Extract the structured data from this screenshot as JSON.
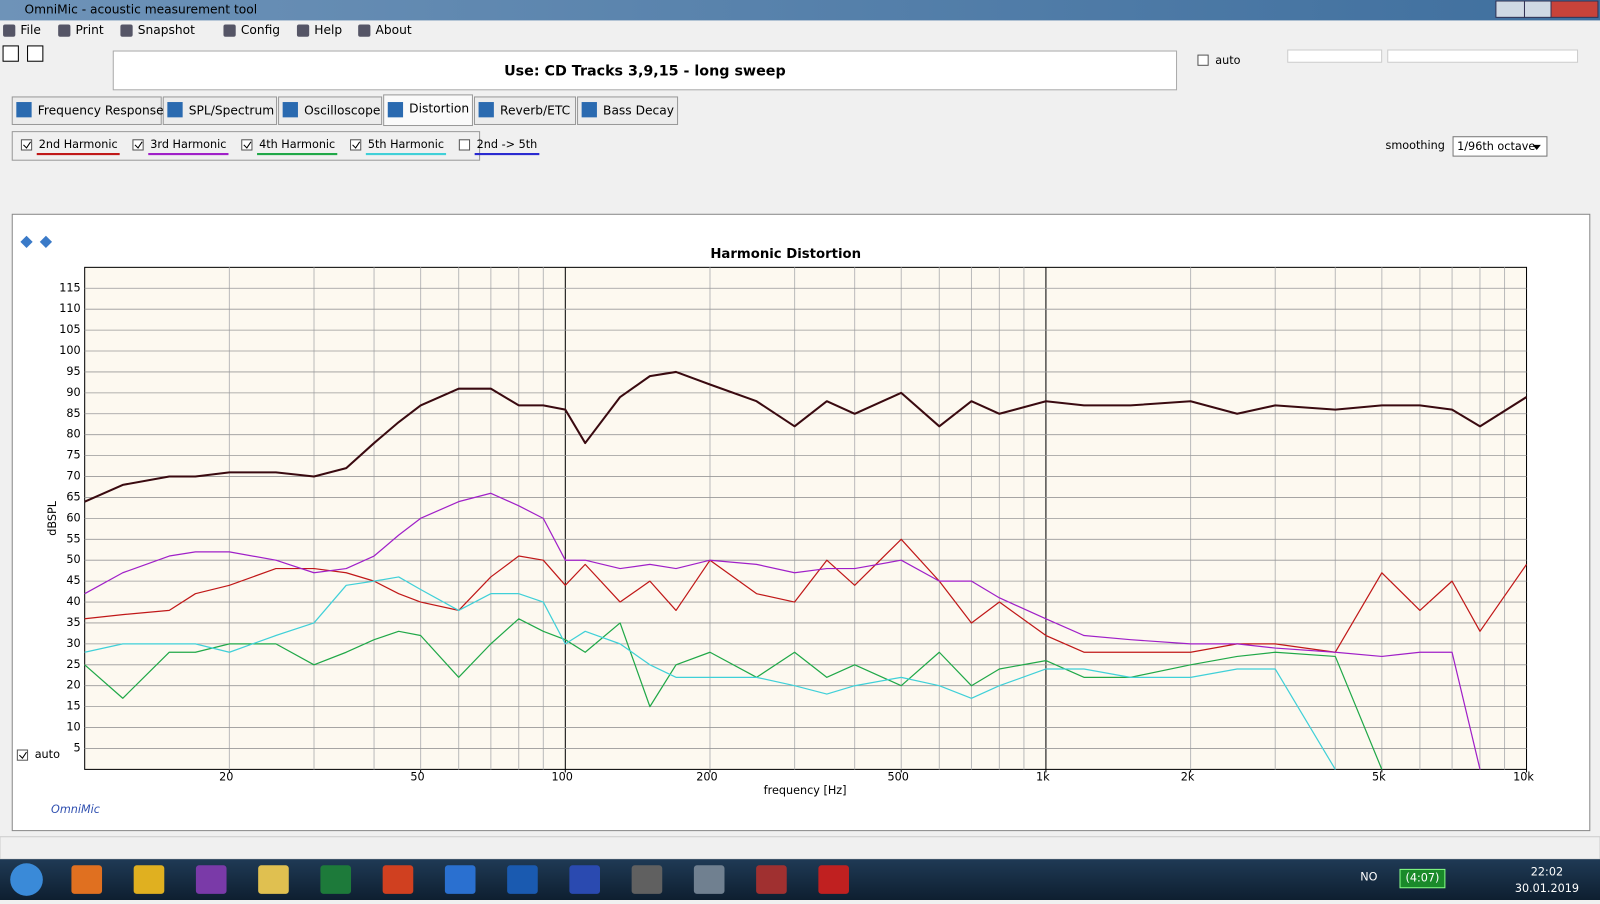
{
  "window": {
    "title": "OmniMic - acoustic measurement tool"
  },
  "menu": [
    "File",
    "Print",
    "Snapshot",
    "Config",
    "Help",
    "About"
  ],
  "instruction": "Use: CD Tracks 3,9,15 - long sweep",
  "auto_label": "auto",
  "tabs": [
    "Frequency Response",
    "SPL/Spectrum",
    "Oscilloscope",
    "Distortion",
    "Reverb/ETC",
    "Bass Decay"
  ],
  "active_tab": 3,
  "combined_option": {
    "label": "2nd -> 5th",
    "color": "#2a2ad0",
    "checked": false
  },
  "smoothing": {
    "label": "smoothing",
    "value": "1/96th octave"
  },
  "chart_data": {
    "type": "line",
    "title": "Harmonic Distortion",
    "x_label": "frequency [Hz]",
    "y_label": "dBSPL",
    "x_scale": "log",
    "grid": true,
    "minor_grid": true,
    "auto_label": "auto",
    "brand": "OmniMic",
    "xlim": [
      10,
      10000
    ],
    "ylim": [
      0,
      120
    ],
    "xticks": [
      {
        "value": 20,
        "label": "20"
      },
      {
        "value": 50,
        "label": "50"
      },
      {
        "value": 100,
        "label": "100"
      },
      {
        "value": 200,
        "label": "200"
      },
      {
        "value": 500,
        "label": "500"
      },
      {
        "value": 1000,
        "label": "1k"
      },
      {
        "value": 2000,
        "label": "2k"
      },
      {
        "value": 5000,
        "label": "5k"
      },
      {
        "value": 10000,
        "label": "10k"
      }
    ],
    "yticks": [
      5,
      10,
      15,
      20,
      25,
      30,
      35,
      40,
      45,
      50,
      55,
      60,
      65,
      70,
      75,
      80,
      85,
      90,
      95,
      100,
      105,
      110,
      115
    ],
    "x": [
      10,
      12,
      15,
      17,
      20,
      25,
      30,
      35,
      40,
      45,
      50,
      60,
      70,
      80,
      90,
      100,
      110,
      130,
      150,
      170,
      200,
      250,
      300,
      350,
      400,
      500,
      600,
      700,
      800,
      1000,
      1200,
      1500,
      2000,
      2500,
      3000,
      4000,
      5000,
      6000,
      7000,
      8000,
      10000
    ],
    "series": [
      {
        "color": "#3a0a10",
        "width": 2,
        "values": [
          64,
          68,
          70,
          70,
          71,
          71,
          70,
          72,
          78,
          83,
          87,
          91,
          91,
          87,
          87,
          86,
          78,
          89,
          94,
          95,
          92,
          88,
          82,
          88,
          85,
          90,
          82,
          88,
          85,
          88,
          87,
          87,
          88,
          85,
          87,
          86,
          87,
          87,
          86,
          82,
          89
        ]
      },
      {
        "name": "2nd Harmonic",
        "color": "#c01818",
        "checked": true,
        "width": 1.2,
        "values": [
          36,
          37,
          38,
          42,
          44,
          48,
          48,
          47,
          45,
          42,
          40,
          38,
          46,
          51,
          50,
          44,
          49,
          40,
          45,
          38,
          50,
          42,
          40,
          50,
          44,
          55,
          45,
          35,
          40,
          32,
          28,
          28,
          28,
          30,
          30,
          28,
          47,
          38,
          45,
          33,
          49
        ]
      },
      {
        "name": "3rd Harmonic",
        "color": "#a020c8",
        "checked": true,
        "width": 1.2,
        "values": [
          42,
          47,
          51,
          52,
          52,
          50,
          47,
          48,
          51,
          56,
          60,
          64,
          66,
          63,
          60,
          50,
          50,
          48,
          49,
          48,
          50,
          49,
          47,
          48,
          48,
          50,
          45,
          45,
          41,
          36,
          32,
          31,
          30,
          30,
          29,
          28,
          27,
          28,
          28,
          0,
          null
        ]
      },
      {
        "name": "4th Harmonic",
        "color": "#20a848",
        "checked": true,
        "width": 1.2,
        "values": [
          25,
          17,
          28,
          28,
          30,
          30,
          25,
          28,
          31,
          33,
          32,
          22,
          30,
          36,
          33,
          31,
          28,
          35,
          15,
          25,
          28,
          22,
          28,
          22,
          25,
          20,
          28,
          20,
          24,
          26,
          22,
          22,
          25,
          27,
          28,
          27,
          0,
          null,
          null,
          null,
          null
        ]
      },
      {
        "name": "5th Harmonic",
        "color": "#40d0d8",
        "checked": true,
        "width": 1.2,
        "values": [
          28,
          30,
          30,
          30,
          28,
          32,
          35,
          44,
          45,
          46,
          43,
          38,
          42,
          42,
          40,
          30,
          33,
          30,
          25,
          22,
          22,
          22,
          20,
          18,
          20,
          22,
          20,
          17,
          20,
          24,
          24,
          22,
          22,
          24,
          24,
          0,
          null,
          null,
          null,
          null,
          null
        ]
      }
    ]
  },
  "taskbar": {
    "lang": "NO",
    "battery": "(4:07)",
    "time": "22:02",
    "date": "30.01.2019"
  }
}
